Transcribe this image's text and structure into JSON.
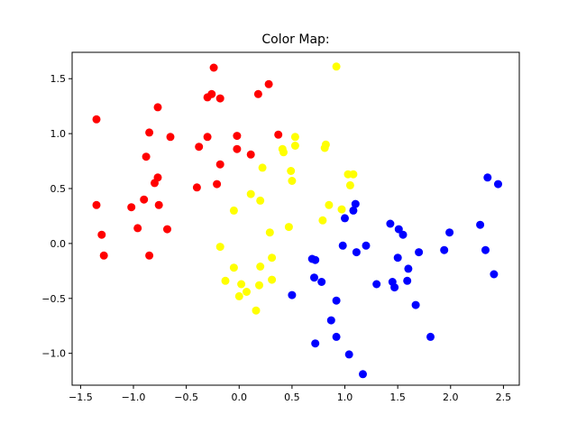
{
  "chart_data": {
    "type": "scatter",
    "title": "Color Map:",
    "xlabel": "",
    "ylabel": "",
    "xlim": [
      -1.58,
      2.65
    ],
    "ylim": [
      -1.29,
      1.74
    ],
    "xticks": [
      -1.5,
      -1.0,
      -0.5,
      0.0,
      0.5,
      1.0,
      1.5,
      2.0,
      2.5
    ],
    "xtick_labels": [
      "−1.5",
      "−1.0",
      "−0.5",
      "0.0",
      "0.5",
      "1.0",
      "1.5",
      "2.0",
      "2.5"
    ],
    "yticks": [
      -1.0,
      -0.5,
      0.0,
      0.5,
      1.0,
      1.5
    ],
    "ytick_labels": [
      "−1.0",
      "−0.5",
      "0.0",
      "0.5",
      "1.0",
      "1.5"
    ],
    "grid": false,
    "series": [
      {
        "color": "#ff0000",
        "points": [
          [
            -1.35,
            1.13
          ],
          [
            -1.35,
            0.35
          ],
          [
            -1.3,
            0.08
          ],
          [
            -1.28,
            -0.11
          ],
          [
            -1.02,
            0.33
          ],
          [
            -0.96,
            0.14
          ],
          [
            -0.9,
            0.4
          ],
          [
            -0.88,
            0.79
          ],
          [
            -0.85,
            1.01
          ],
          [
            -0.85,
            -0.11
          ],
          [
            -0.8,
            0.55
          ],
          [
            -0.77,
            0.6
          ],
          [
            -0.77,
            1.24
          ],
          [
            -0.76,
            0.35
          ],
          [
            -0.68,
            0.13
          ],
          [
            -0.65,
            0.97
          ],
          [
            -0.4,
            0.51
          ],
          [
            -0.38,
            0.88
          ],
          [
            -0.3,
            1.33
          ],
          [
            -0.3,
            0.97
          ],
          [
            -0.26,
            1.36
          ],
          [
            -0.24,
            1.6
          ],
          [
            -0.21,
            0.54
          ],
          [
            -0.18,
            1.32
          ],
          [
            -0.18,
            0.72
          ],
          [
            -0.02,
            0.86
          ],
          [
            -0.02,
            0.98
          ],
          [
            0.11,
            0.81
          ],
          [
            0.18,
            1.36
          ],
          [
            0.28,
            1.45
          ],
          [
            0.37,
            0.99
          ]
        ]
      },
      {
        "color": "#ffff00",
        "points": [
          [
            -0.18,
            -0.03
          ],
          [
            -0.13,
            -0.34
          ],
          [
            -0.05,
            0.3
          ],
          [
            -0.05,
            -0.22
          ],
          [
            0.0,
            -0.48
          ],
          [
            0.02,
            -0.37
          ],
          [
            0.07,
            -0.44
          ],
          [
            0.11,
            0.45
          ],
          [
            0.16,
            -0.61
          ],
          [
            0.19,
            -0.38
          ],
          [
            0.2,
            0.39
          ],
          [
            0.2,
            -0.21
          ],
          [
            0.22,
            0.69
          ],
          [
            0.29,
            0.1
          ],
          [
            0.31,
            -0.13
          ],
          [
            0.31,
            -0.33
          ],
          [
            0.41,
            0.86
          ],
          [
            0.42,
            0.83
          ],
          [
            0.47,
            0.15
          ],
          [
            0.49,
            0.66
          ],
          [
            0.5,
            0.57
          ],
          [
            0.53,
            0.89
          ],
          [
            0.53,
            0.97
          ],
          [
            0.79,
            0.21
          ],
          [
            0.81,
            0.87
          ],
          [
            0.82,
            0.9
          ],
          [
            0.85,
            0.35
          ],
          [
            0.92,
            1.61
          ],
          [
            0.97,
            0.31
          ],
          [
            1.03,
            0.63
          ],
          [
            1.05,
            0.53
          ],
          [
            1.08,
            0.63
          ]
        ]
      },
      {
        "color": "#0000ff",
        "points": [
          [
            0.5,
            -0.47
          ],
          [
            0.69,
            -0.14
          ],
          [
            0.71,
            -0.31
          ],
          [
            0.72,
            -0.15
          ],
          [
            0.72,
            -0.91
          ],
          [
            0.78,
            -0.35
          ],
          [
            0.87,
            -0.7
          ],
          [
            0.92,
            -0.52
          ],
          [
            0.92,
            -0.85
          ],
          [
            0.98,
            -0.02
          ],
          [
            1.0,
            0.23
          ],
          [
            1.04,
            -1.01
          ],
          [
            1.08,
            0.3
          ],
          [
            1.1,
            0.36
          ],
          [
            1.11,
            -0.08
          ],
          [
            1.17,
            -1.19
          ],
          [
            1.2,
            -0.02
          ],
          [
            1.3,
            -0.37
          ],
          [
            1.43,
            0.18
          ],
          [
            1.45,
            -0.35
          ],
          [
            1.47,
            -0.4
          ],
          [
            1.5,
            -0.13
          ],
          [
            1.51,
            0.13
          ],
          [
            1.55,
            0.08
          ],
          [
            1.59,
            -0.34
          ],
          [
            1.6,
            -0.23
          ],
          [
            1.67,
            -0.56
          ],
          [
            1.7,
            -0.08
          ],
          [
            1.81,
            -0.85
          ],
          [
            1.94,
            -0.06
          ],
          [
            1.99,
            0.1
          ],
          [
            2.28,
            0.17
          ],
          [
            2.33,
            -0.06
          ],
          [
            2.35,
            0.6
          ],
          [
            2.41,
            -0.28
          ],
          [
            2.45,
            0.54
          ]
        ]
      }
    ]
  }
}
